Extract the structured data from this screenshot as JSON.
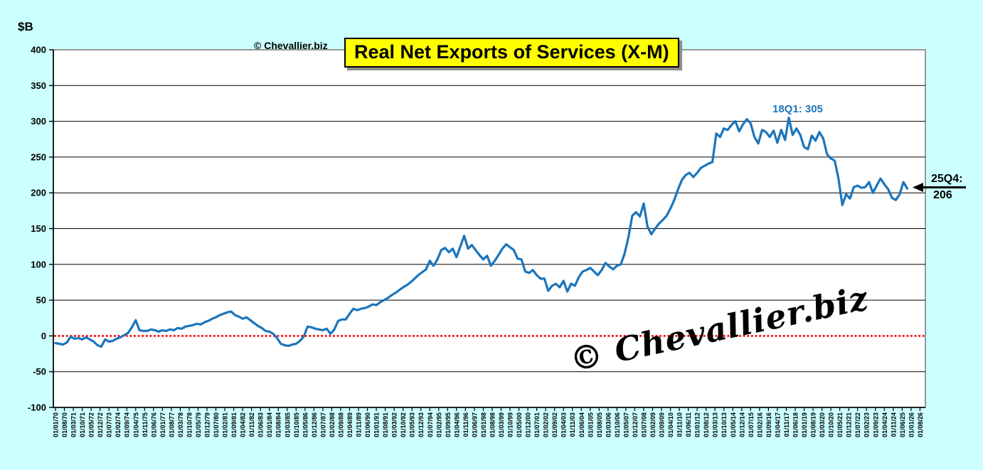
{
  "page": {
    "background": "#CCFFFF",
    "plot_background": "#FFFFFF"
  },
  "y_axis_unit": "$B",
  "copyright_small": "© Chevallier.biz",
  "watermark": "© Chevallier.biz",
  "title": "Real Net Exports of Services (X-M)",
  "annotations": {
    "peak_label": "18Q1: 305",
    "latest_label_line1": "25Q4:",
    "latest_label_line2": "206"
  },
  "chart_data": {
    "type": "line",
    "title": "Real Net Exports of Services (X-M)",
    "ylabel": "$B",
    "ylim": [
      -100,
      400
    ],
    "ytick_interval": 50,
    "ytick_labels": [
      "400",
      "350",
      "300",
      "250",
      "200",
      "150",
      "100",
      "50",
      "0",
      "-50",
      "-100"
    ],
    "grid": true,
    "zero_line": {
      "color": "#FF0000",
      "style": "dotted"
    },
    "x_tick_labels": [
      "01/01/70",
      "01/08/70",
      "01/03/71",
      "01/10/71",
      "01/05/72",
      "01/12/72",
      "01/07/73",
      "01/02/74",
      "01/09/74",
      "01/04/75",
      "01/11/75",
      "01/06/76",
      "01/01/77",
      "01/08/77",
      "01/03/78",
      "01/10/78",
      "01/05/79",
      "01/12/79",
      "01/07/80",
      "01/02/81",
      "01/09/81",
      "01/04/82",
      "01/11/82",
      "01/06/83",
      "01/01/84",
      "01/08/84",
      "01/03/85",
      "01/10/85",
      "01/05/86",
      "01/12/86",
      "01/07/87",
      "01/02/88",
      "01/09/88",
      "01/04/89",
      "01/11/89",
      "01/06/90",
      "01/01/91",
      "01/08/91",
      "01/03/92",
      "01/10/92",
      "01/05/93",
      "01/12/93",
      "01/07/94",
      "01/02/95",
      "01/09/95",
      "01/04/96",
      "01/11/96",
      "01/06/97",
      "01/01/98",
      "01/08/98",
      "01/03/99",
      "01/10/99",
      "01/05/00",
      "01/12/00",
      "01/07/01",
      "01/02/02",
      "01/09/02",
      "01/04/03",
      "01/11/03",
      "01/06/04",
      "01/01/05",
      "01/08/05",
      "01/03/06",
      "01/10/06",
      "01/05/07",
      "01/12/07",
      "01/07/08",
      "01/02/09",
      "01/09/09",
      "01/04/10",
      "01/11/10",
      "01/06/11",
      "01/01/12",
      "01/08/12",
      "01/03/13",
      "01/10/13",
      "01/05/14",
      "01/12/14",
      "01/07/15",
      "01/02/16",
      "01/09/16",
      "01/04/17",
      "01/11/17",
      "01/06/18",
      "01/01/19",
      "01/08/19",
      "01/03/20",
      "01/10/20",
      "01/05/21",
      "01/12/21",
      "01/07/22",
      "01/02/23",
      "01/09/23",
      "01/04/24",
      "01/11/24",
      "01/06/25",
      "01/01/26",
      "01/08/26"
    ],
    "series": [
      {
        "name": "Real Net Exports of Services (X-M), $B",
        "color": "#1B75BC",
        "start": "1970Q1",
        "end": "2025Q4",
        "frequency": "quarterly",
        "values": [
          -10,
          -11,
          -12,
          -9,
          -1,
          -4,
          -3,
          -5,
          -2,
          -5,
          -8,
          -13,
          -15,
          -5,
          -8,
          -7,
          -4,
          -2,
          1,
          4,
          12,
          22,
          8,
          7,
          7,
          9,
          8,
          6,
          8,
          7,
          9,
          8,
          11,
          10,
          13,
          14,
          15,
          17,
          16,
          19,
          21,
          24,
          26,
          29,
          31,
          33,
          34,
          29,
          27,
          24,
          26,
          22,
          18,
          14,
          11,
          7,
          6,
          3,
          -3,
          -11,
          -13,
          -14,
          -12,
          -11,
          -7,
          -1,
          13,
          12,
          10,
          9,
          8,
          10,
          3,
          9,
          21,
          23,
          23,
          31,
          38,
          36,
          38,
          39,
          41,
          44,
          43,
          47,
          50,
          53,
          57,
          60,
          64,
          68,
          71,
          75,
          80,
          85,
          89,
          93,
          105,
          98,
          107,
          120,
          123,
          117,
          122,
          110,
          125,
          140,
          122,
          127,
          120,
          113,
          107,
          112,
          98,
          105,
          113,
          122,
          128,
          124,
          120,
          108,
          107,
          90,
          88,
          92,
          85,
          80,
          80,
          63,
          70,
          73,
          68,
          77,
          62,
          73,
          70,
          82,
          90,
          92,
          95,
          90,
          85,
          92,
          102,
          97,
          93,
          98,
          100,
          115,
          138,
          168,
          173,
          167,
          185,
          153,
          142,
          150,
          157,
          162,
          168,
          178,
          190,
          205,
          218,
          225,
          228,
          222,
          228,
          235,
          238,
          241,
          243,
          283,
          278,
          290,
          288,
          295,
          300,
          286,
          296,
          303,
          297,
          278,
          269,
          288,
          285,
          278,
          287,
          270,
          288,
          274,
          305,
          281,
          290,
          281,
          264,
          261,
          280,
          273,
          285,
          276,
          254,
          248,
          245,
          220,
          183,
          198,
          192,
          208,
          210,
          207,
          208,
          215,
          200,
          210,
          220,
          212,
          205,
          193,
          190,
          198,
          215,
          206
        ]
      }
    ],
    "callouts": [
      {
        "text": "18Q1: 305",
        "quarter": "2018Q1",
        "value": 305,
        "color": "#1B75BC"
      },
      {
        "text": "25Q4: 206",
        "quarter": "2025Q4",
        "value": 206,
        "color": "#000000",
        "arrow": true
      }
    ],
    "legend_position": "none"
  }
}
